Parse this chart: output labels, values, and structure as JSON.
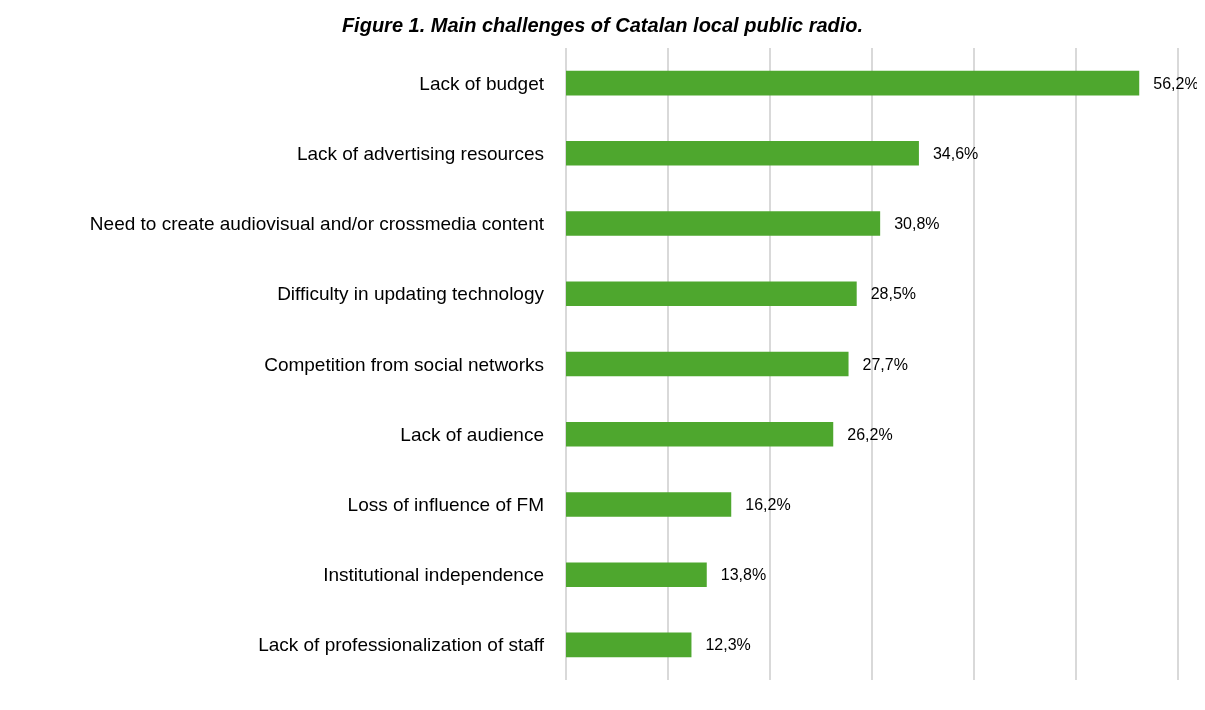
{
  "chart_data": {
    "type": "bar",
    "orientation": "horizontal",
    "title": "Figure 1. Main challenges of Catalan local public radio.",
    "categories": [
      "Lack of budget",
      "Lack of advertising resources",
      "Need to create audiovisual and/or crossmedia content",
      "Difficulty in updating technology",
      "Competition from social networks",
      "Lack of audience",
      "Loss of influence of FM",
      "Institutional independence",
      "Lack of professionalization of staff"
    ],
    "values": [
      56.2,
      34.6,
      30.8,
      28.5,
      27.7,
      26.2,
      16.2,
      13.8,
      12.3
    ],
    "value_labels": [
      "56,2%",
      "34,6%",
      "30,8%",
      "28,5%",
      "27,7%",
      "26,2%",
      "16,2%",
      "13,8%",
      "12,3%"
    ],
    "color": "#4ea72e",
    "xlim": [
      0,
      60
    ],
    "xticks": [
      {
        "value": 0,
        "label": null
      },
      {
        "value": 10,
        "label": null
      },
      {
        "value": 20,
        "label": null
      },
      {
        "value": 30,
        "label": null
      },
      {
        "value": 40,
        "label": null
      },
      {
        "value": 50,
        "label": null
      },
      {
        "value": 60,
        "label": null
      }
    ],
    "grid": "x"
  }
}
